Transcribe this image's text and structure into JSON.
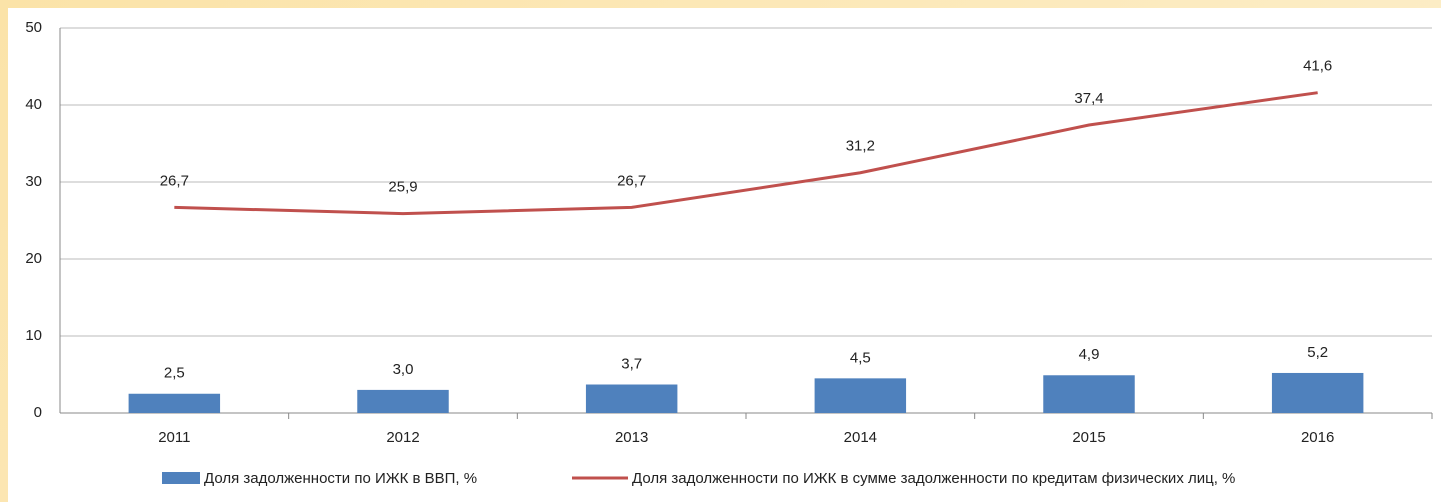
{
  "chart_data": {
    "type": "bar",
    "categories": [
      "2011",
      "2012",
      "2013",
      "2014",
      "2015",
      "2016"
    ],
    "series": [
      {
        "name": "Доля задолженности по ИЖК в ВВП, %",
        "type": "bar",
        "color": "#4f81bd",
        "values": [
          2.5,
          3.0,
          3.7,
          4.5,
          4.9,
          5.2
        ],
        "value_labels": [
          "2,5",
          "3,0",
          "3,7",
          "4,5",
          "4,9",
          "5,2"
        ]
      },
      {
        "name": "Доля задолженности по ИЖК в сумме задолженности по кредитам  физических лиц, %",
        "type": "line",
        "color": "#c0504d",
        "values": [
          26.7,
          25.9,
          26.7,
          31.2,
          37.4,
          41.6
        ],
        "value_labels": [
          "26,7",
          "25,9",
          "26,7",
          "31,2",
          "37,4",
          "41,6"
        ]
      }
    ],
    "ylim": [
      0,
      50
    ],
    "yticks": [
      0,
      10,
      20,
      30,
      40,
      50
    ],
    "grid": true,
    "legend": "bottom"
  }
}
